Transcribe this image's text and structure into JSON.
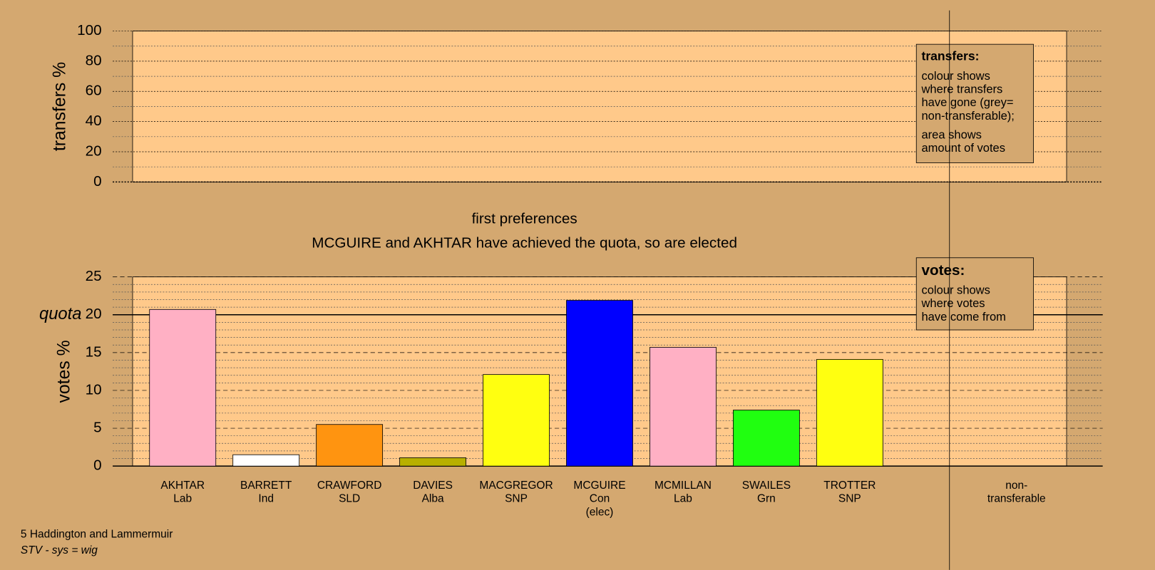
{
  "chart_data": [
    {
      "type": "bar",
      "ylabel": "transfers %",
      "ylim": [
        0,
        100
      ],
      "yticks": [
        0,
        20,
        40,
        60,
        80,
        100
      ],
      "minor_yticks": [
        10,
        30,
        50,
        70,
        90
      ],
      "legend_box": {
        "title": "transfers:",
        "paragraphs": [
          [
            "colour shows",
            "where transfers",
            "have gone (grey=",
            "non-transferable);"
          ],
          [
            "area shows",
            "amount of votes"
          ]
        ]
      }
    },
    {
      "type": "bar",
      "title": "first preferences",
      "subtitle": "MCGUIRE and AKHTAR have achieved the quota, so are elected",
      "ylabel": "votes %",
      "ylim": [
        0,
        25
      ],
      "yticks": [
        0,
        5,
        10,
        15,
        20,
        25
      ],
      "minor_yticks": [
        1,
        2,
        3,
        4,
        6,
        7,
        8,
        9,
        11,
        12,
        13,
        14,
        16,
        17,
        18,
        19,
        21,
        22,
        23,
        24
      ],
      "quota": {
        "value": 20,
        "label": "quota"
      },
      "categories": [
        [
          "AKHTAR",
          "Lab"
        ],
        [
          "BARRETT",
          "Ind"
        ],
        [
          "CRAWFORD",
          "SLD"
        ],
        [
          "DAVIES",
          "Alba"
        ],
        [
          "MACGREGOR",
          "SNP"
        ],
        [
          "MCGUIRE",
          "Con",
          "(elec)"
        ],
        [
          "MCMILLAN",
          "Lab"
        ],
        [
          "SWAILES",
          "Grn"
        ],
        [
          "TROTTER",
          "SNP"
        ],
        [
          "non-",
          "transferable"
        ]
      ],
      "values": [
        20.7,
        1.5,
        5.5,
        1.1,
        12.1,
        21.9,
        15.7,
        7.4,
        14.1,
        null
      ],
      "colors": [
        "#ffb0c4",
        "#ffffff",
        "#ff9410",
        "#b8b000",
        "#ffff10",
        "#0000ff",
        "#ffb0c4",
        "#20ff10",
        "#ffff10",
        null
      ],
      "legend_box": {
        "title": "votes:",
        "paragraphs": [
          [
            "colour shows",
            "where votes",
            "have come from"
          ]
        ]
      }
    }
  ],
  "footer": [
    "5 Haddington and Lammermuir",
    "STV - sys = wig"
  ]
}
